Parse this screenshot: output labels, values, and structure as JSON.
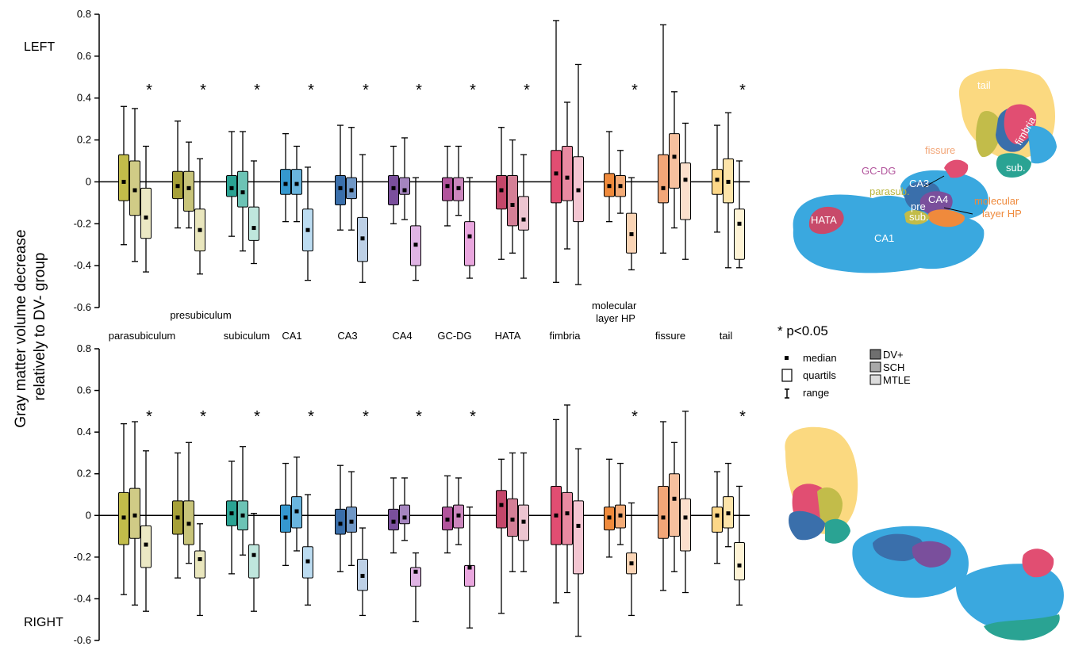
{
  "chart_data": {
    "type": "boxplot",
    "ylabel": "Gray matter volume decrease relatively to DV- group",
    "ylim": [
      -0.6,
      0.8
    ],
    "yticks": [
      "0.8",
      "0.6",
      "0.4",
      "0.2",
      "0",
      "-0.2",
      "-0.4",
      "-0.6"
    ],
    "groups": [
      "DV+",
      "SCH",
      "MTLE"
    ],
    "regions": [
      {
        "label": "parasubiculum",
        "colors": [
          "#c2bc4a",
          "#d0cb86",
          "#ebe8c4"
        ]
      },
      {
        "label": "presubiculum",
        "colors": [
          "#a6a038",
          "#c8c47a",
          "#e9e6bd"
        ]
      },
      {
        "label": "subiculum",
        "colors": [
          "#2aa393",
          "#6cc3b5",
          "#bfe6dd"
        ]
      },
      {
        "label": "CA1",
        "colors": [
          "#3598cf",
          "#6ab5de",
          "#bcdcf1"
        ]
      },
      {
        "label": "CA3",
        "colors": [
          "#3a6fab",
          "#6f97c6",
          "#bdd0e6"
        ]
      },
      {
        "label": "CA4",
        "colors": [
          "#7a4f9c",
          "#a585bf",
          "#e0b4e4"
        ]
      },
      {
        "label": "GC-DG",
        "colors": [
          "#b2549c",
          "#cb86bd",
          "#e9a6de"
        ]
      },
      {
        "label": "HATA",
        "colors": [
          "#c4476a",
          "#d47f96",
          "#ecc4d0"
        ]
      },
      {
        "label": "fimbria",
        "colors": [
          "#e14e72",
          "#e88aa1",
          "#f4c6d2"
        ]
      },
      {
        "label": "molecular layer HP",
        "colors": [
          "#ef8a3c",
          "#f3ab77",
          "#fad4b5"
        ]
      },
      {
        "label": "fissure",
        "colors": [
          "#f2a678",
          "#f6c09e",
          "#fbdfcc"
        ]
      },
      {
        "label": "tail",
        "colors": [
          "#fcd788",
          "#fde4a9",
          "#fef3d5"
        ]
      }
    ],
    "panels": [
      {
        "name": "LEFT",
        "significant": [
          true,
          true,
          true,
          true,
          true,
          true,
          true,
          true,
          false,
          true,
          false,
          true
        ],
        "boxes": [
          [
            [
              -0.3,
              -0.09,
              0.0,
              0.13,
              0.36
            ],
            [
              -0.38,
              -0.16,
              -0.04,
              0.1,
              0.35
            ],
            [
              -0.43,
              -0.27,
              -0.17,
              -0.03,
              0.17
            ]
          ],
          [
            [
              -0.22,
              -0.08,
              -0.02,
              0.05,
              0.29
            ],
            [
              -0.22,
              -0.14,
              -0.03,
              0.05,
              0.19
            ],
            [
              -0.44,
              -0.33,
              -0.23,
              -0.13,
              0.11
            ]
          ],
          [
            [
              -0.26,
              -0.07,
              -0.03,
              0.03,
              0.24
            ],
            [
              -0.33,
              -0.12,
              -0.05,
              0.05,
              0.24
            ],
            [
              -0.39,
              -0.28,
              -0.22,
              -0.12,
              0.1
            ]
          ],
          [
            [
              -0.19,
              -0.06,
              -0.01,
              0.06,
              0.23
            ],
            [
              -0.19,
              -0.06,
              -0.01,
              0.06,
              0.17
            ],
            [
              -0.47,
              -0.33,
              -0.23,
              -0.13,
              0.07
            ]
          ],
          [
            [
              -0.23,
              -0.11,
              -0.03,
              0.03,
              0.27
            ],
            [
              -0.23,
              -0.08,
              -0.04,
              0.02,
              0.26
            ],
            [
              -0.48,
              -0.38,
              -0.27,
              -0.17,
              0.13
            ]
          ],
          [
            [
              -0.2,
              -0.11,
              -0.03,
              0.03,
              0.17
            ],
            [
              -0.18,
              -0.06,
              -0.04,
              0.02,
              0.21
            ],
            [
              -0.47,
              -0.4,
              -0.3,
              -0.21,
              0.02
            ]
          ],
          [
            [
              -0.21,
              -0.09,
              -0.02,
              0.02,
              0.17
            ],
            [
              -0.16,
              -0.09,
              -0.03,
              0.02,
              0.17
            ],
            [
              -0.46,
              -0.4,
              -0.26,
              -0.19,
              0.02
            ]
          ],
          [
            [
              -0.37,
              -0.13,
              -0.04,
              0.03,
              0.26
            ],
            [
              -0.34,
              -0.21,
              -0.11,
              0.03,
              0.2
            ],
            [
              -0.46,
              -0.23,
              -0.18,
              -0.07,
              0.13
            ]
          ],
          [
            [
              -0.48,
              -0.1,
              0.04,
              0.15,
              0.77
            ],
            [
              -0.32,
              -0.09,
              0.02,
              0.17,
              0.38
            ],
            [
              -0.49,
              -0.19,
              -0.04,
              0.12,
              0.56
            ]
          ],
          [
            [
              -0.19,
              -0.07,
              -0.02,
              0.04,
              0.24
            ],
            [
              -0.15,
              -0.07,
              -0.02,
              0.03,
              0.15
            ],
            [
              -0.42,
              -0.34,
              -0.25,
              -0.15,
              0.02
            ]
          ],
          [
            [
              -0.34,
              -0.1,
              -0.03,
              0.13,
              0.75
            ],
            [
              -0.22,
              -0.03,
              0.12,
              0.23,
              0.43
            ],
            [
              -0.37,
              -0.18,
              0.01,
              0.09,
              0.28
            ]
          ],
          [
            [
              -0.24,
              -0.06,
              0.01,
              0.06,
              0.27
            ],
            [
              -0.41,
              -0.1,
              0.0,
              0.11,
              0.33
            ],
            [
              -0.41,
              -0.37,
              -0.2,
              -0.13,
              0.1
            ]
          ]
        ]
      },
      {
        "name": "RIGHT",
        "significant": [
          true,
          true,
          true,
          true,
          true,
          true,
          true,
          false,
          false,
          true,
          false,
          true
        ],
        "boxes": [
          [
            [
              -0.38,
              -0.14,
              -0.01,
              0.11,
              0.44
            ],
            [
              -0.43,
              -0.11,
              0.0,
              0.13,
              0.45
            ],
            [
              -0.46,
              -0.25,
              -0.14,
              -0.05,
              0.31
            ]
          ],
          [
            [
              -0.3,
              -0.09,
              -0.01,
              0.07,
              0.3
            ],
            [
              -0.23,
              -0.14,
              -0.04,
              0.07,
              0.35
            ],
            [
              -0.48,
              -0.3,
              -0.21,
              -0.17,
              -0.04
            ]
          ],
          [
            [
              -0.28,
              -0.05,
              0.01,
              0.07,
              0.26
            ],
            [
              -0.19,
              -0.07,
              0.0,
              0.07,
              0.33
            ],
            [
              -0.46,
              -0.3,
              -0.19,
              -0.14,
              0.01
            ]
          ],
          [
            [
              -0.24,
              -0.08,
              -0.01,
              0.05,
              0.25
            ],
            [
              -0.17,
              -0.06,
              0.02,
              0.09,
              0.28
            ],
            [
              -0.43,
              -0.3,
              -0.22,
              -0.15,
              0.1
            ]
          ],
          [
            [
              -0.27,
              -0.09,
              -0.04,
              0.03,
              0.24
            ],
            [
              -0.24,
              -0.08,
              -0.03,
              0.04,
              0.21
            ],
            [
              -0.48,
              -0.36,
              -0.29,
              -0.21,
              -0.06
            ]
          ],
          [
            [
              -0.18,
              -0.07,
              -0.03,
              0.03,
              0.18
            ],
            [
              -0.12,
              -0.04,
              -0.01,
              0.05,
              0.18
            ],
            [
              -0.51,
              -0.34,
              -0.27,
              -0.25,
              -0.18
            ]
          ],
          [
            [
              -0.18,
              -0.07,
              -0.02,
              0.04,
              0.19
            ],
            [
              -0.14,
              -0.06,
              0.0,
              0.05,
              0.18
            ],
            [
              -0.54,
              -0.34,
              -0.25,
              -0.24,
              0.04
            ]
          ],
          [
            [
              -0.47,
              -0.06,
              0.05,
              0.12,
              0.27
            ],
            [
              -0.27,
              -0.1,
              -0.02,
              0.08,
              0.3
            ],
            [
              -0.27,
              -0.12,
              -0.03,
              0.05,
              0.3
            ]
          ],
          [
            [
              -0.42,
              -0.14,
              0.0,
              0.14,
              0.46
            ],
            [
              -0.37,
              -0.14,
              0.01,
              0.11,
              0.53
            ],
            [
              -0.58,
              -0.28,
              -0.05,
              0.07,
              0.32
            ]
          ],
          [
            [
              -0.2,
              -0.07,
              -0.01,
              0.04,
              0.27
            ],
            [
              -0.14,
              -0.06,
              0.0,
              0.05,
              0.25
            ],
            [
              -0.48,
              -0.28,
              -0.23,
              -0.18,
              0.06
            ]
          ],
          [
            [
              -0.36,
              -0.11,
              -0.01,
              0.14,
              0.45
            ],
            [
              -0.27,
              -0.1,
              0.08,
              0.2,
              0.35
            ],
            [
              -0.37,
              -0.17,
              -0.01,
              0.08,
              0.5
            ]
          ],
          [
            [
              -0.23,
              -0.08,
              0.0,
              0.04,
              0.21
            ],
            [
              -0.15,
              -0.06,
              0.01,
              0.09,
              0.25
            ],
            [
              -0.43,
              -0.31,
              -0.24,
              -0.13,
              0.14
            ]
          ]
        ]
      }
    ]
  },
  "significance_note": "* p<0.05",
  "legend": {
    "median": "median",
    "quartils": "quartils",
    "range": "range",
    "groups": [
      {
        "label": "DV+",
        "color": "#6f6f6f"
      },
      {
        "label": "SCH",
        "color": "#a8a8a8"
      },
      {
        "label": "MTLE",
        "color": "#dcdcdc"
      }
    ]
  },
  "brain_labels": [
    "tail",
    "fimbria",
    "sub.",
    "fissure",
    "GC-DG",
    "CA3",
    "CA4",
    "parasub.",
    "pre",
    "sub.",
    "HATA",
    "CA1",
    "molecular layer HP"
  ]
}
